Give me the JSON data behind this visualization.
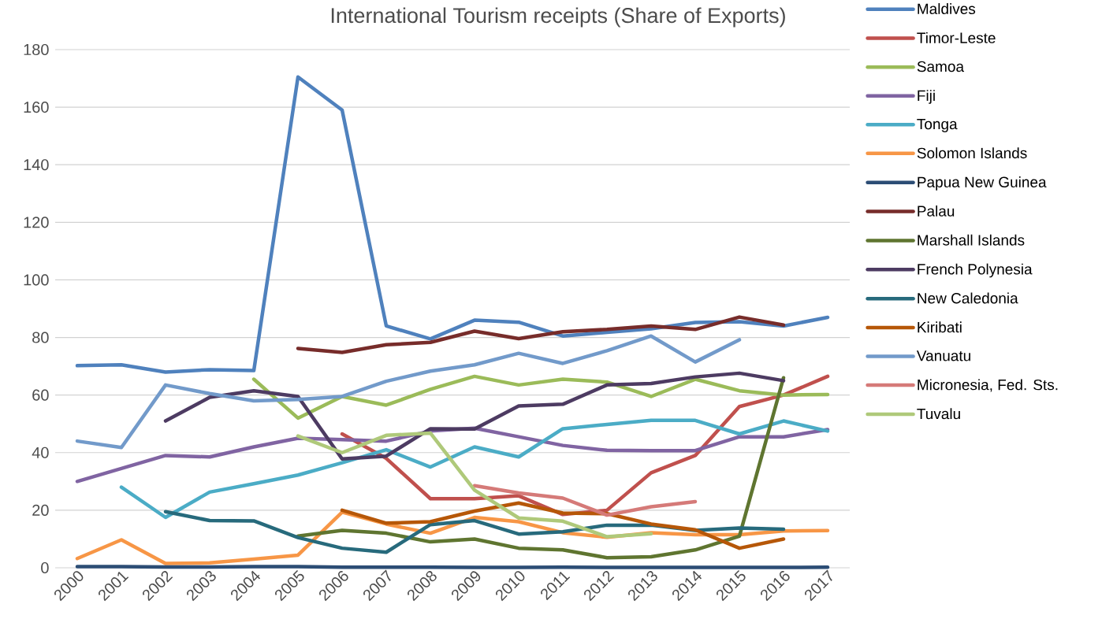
{
  "chart_data": {
    "type": "line",
    "title": "International Tourism receipts (Share of Exports)",
    "categories": [
      "2000",
      "2001",
      "2002",
      "2003",
      "2004",
      "2005",
      "2006",
      "2007",
      "2008",
      "2009",
      "2010",
      "2011",
      "2012",
      "2013",
      "2014",
      "2015",
      "2016",
      "2017"
    ],
    "ylim": [
      0,
      180
    ],
    "yticks": [
      0,
      20,
      40,
      60,
      80,
      100,
      120,
      140,
      160,
      180
    ],
    "grid": "y",
    "legend": "right",
    "marker": "none",
    "line_style": "solid",
    "series": [
      {
        "name": "Maldives",
        "color": "#4f81bd",
        "values": [
          70.2,
          70.5,
          68,
          68.8,
          68.5,
          170.5,
          159,
          84,
          79.5,
          86,
          85.3,
          80.5,
          81.8,
          83,
          85.2,
          85.5,
          84,
          87
        ]
      },
      {
        "name": "Timor-Leste",
        "color": "#c0504d",
        "values": [
          null,
          null,
          null,
          null,
          null,
          null,
          46.5,
          38,
          24,
          24,
          25,
          18.5,
          20,
          33,
          39,
          56,
          60,
          66.5
        ]
      },
      {
        "name": "Samoa",
        "color": "#9bbb59",
        "values": [
          null,
          null,
          null,
          null,
          65.5,
          52,
          59.5,
          56.5,
          62,
          66.5,
          63.5,
          65.5,
          64.5,
          59.5,
          65.5,
          61.5,
          60,
          60.2
        ]
      },
      {
        "name": "Fiji",
        "color": "#8064a2",
        "values": [
          30,
          34.5,
          39,
          38.5,
          42,
          45,
          44.5,
          44,
          47.5,
          48.5,
          45.5,
          42.5,
          40.8,
          40.7,
          40.7,
          45.5,
          45.5,
          48
        ]
      },
      {
        "name": "Tonga",
        "color": "#4bacc6",
        "values": [
          null,
          28,
          17.5,
          26.3,
          29.2,
          32.2,
          36.5,
          41,
          35,
          42,
          38.5,
          48.3,
          49.8,
          51.2,
          51.2,
          46.5,
          51,
          47.5
        ]
      },
      {
        "name": "Solomon Islands",
        "color": "#f79646",
        "values": [
          3.2,
          9.7,
          1.5,
          1.7,
          3,
          4.4,
          19.3,
          15.2,
          12,
          17.5,
          16,
          12.2,
          10.6,
          12.2,
          11.5,
          11.5,
          12.8,
          12.9
        ]
      },
      {
        "name": "Papua New Guinea",
        "color": "#2c4d75",
        "values": [
          0.4,
          0.4,
          0.3,
          0.3,
          0.4,
          0.4,
          0.2,
          0.2,
          0.2,
          0.1,
          0.1,
          0.2,
          0.1,
          0.1,
          0.1,
          0.1,
          0.1,
          0.2
        ]
      },
      {
        "name": "Palau",
        "color": "#772c2a",
        "values": [
          null,
          null,
          null,
          null,
          null,
          76.2,
          74.8,
          77.5,
          78.3,
          82.2,
          79.6,
          82,
          82.8,
          84,
          82.8,
          87.1,
          84.3,
          null
        ]
      },
      {
        "name": "Marshall Islands",
        "color": "#5f7530",
        "values": [
          null,
          null,
          null,
          null,
          null,
          11,
          13,
          12,
          9,
          10,
          6.8,
          6.2,
          3.5,
          3.8,
          6.2,
          11,
          66,
          null
        ]
      },
      {
        "name": "French Polynesia",
        "color": "#4d3b62",
        "values": [
          null,
          null,
          51,
          59.2,
          61.5,
          59.5,
          37.8,
          38.8,
          48.3,
          48.2,
          56.2,
          56.8,
          63.5,
          64,
          66.3,
          67.6,
          65,
          null
        ]
      },
      {
        "name": "New Caledonia",
        "color": "#276a7c",
        "values": [
          null,
          null,
          19.5,
          16.4,
          16.3,
          10.5,
          6.8,
          5.4,
          15,
          16.4,
          11.7,
          12.5,
          14.8,
          14.8,
          13,
          13.8,
          13.4,
          null
        ]
      },
      {
        "name": "Kiribati",
        "color": "#b65708",
        "values": [
          null,
          null,
          null,
          null,
          null,
          null,
          20,
          15.5,
          16,
          19.7,
          22.5,
          19,
          18.8,
          15.2,
          13.2,
          6.8,
          10,
          null
        ]
      },
      {
        "name": "Vanuatu",
        "color": "#729aca",
        "values": [
          44,
          41.8,
          63.5,
          60.5,
          58,
          58.5,
          59.5,
          64.8,
          68.3,
          70.5,
          74.5,
          71,
          75.4,
          80.5,
          71.5,
          79.2,
          null,
          null
        ]
      },
      {
        "name": "Micronesia, Fed. Sts.",
        "color": "#d57a78",
        "values": [
          null,
          null,
          null,
          null,
          null,
          null,
          null,
          null,
          null,
          28.5,
          26,
          24.2,
          18.3,
          21.2,
          23,
          null,
          null,
          null
        ]
      },
      {
        "name": "Tuvalu",
        "color": "#afc97a",
        "values": [
          null,
          null,
          null,
          null,
          null,
          45.8,
          40,
          46,
          46.8,
          27,
          17.3,
          16.2,
          10.8,
          11.8,
          null,
          null,
          null,
          null
        ]
      }
    ]
  }
}
